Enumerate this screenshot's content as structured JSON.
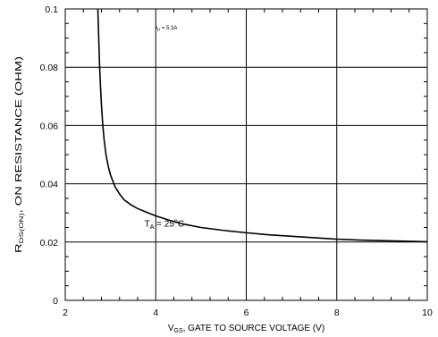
{
  "chart_data": {
    "type": "line",
    "title": "",
    "xlabel": {
      "main": "V",
      "sub": "GS",
      "rest": ", GATE TO SOURCE VOLTAGE (V)"
    },
    "ylabel": {
      "main": "R",
      "sub": "DS(ON)",
      "rest": ", ON RESISTANCE (OHM)"
    },
    "xlim": [
      2,
      10
    ],
    "ylim": [
      0,
      0.1
    ],
    "x_ticks": [
      2,
      4,
      6,
      8,
      10
    ],
    "x_tick_labels": [
      "2",
      "4",
      "6",
      "8",
      "10"
    ],
    "y_ticks": [
      0,
      0.02,
      0.04,
      0.06,
      0.08,
      0.1
    ],
    "y_tick_labels": [
      "0",
      "0.02",
      "0.04",
      "0.06",
      "0.08",
      "0.1"
    ],
    "grid": true,
    "annotations": {
      "condition": {
        "main": "I",
        "sub": "D",
        "rest": " = 5.3A",
        "x": 4.0,
        "y": 0.093
      },
      "temperature": {
        "main": "T",
        "sub": "A",
        "rest": " = 25",
        "sup": "o",
        "unit": "C",
        "x": 3.75,
        "y": 0.0253
      }
    },
    "series": [
      {
        "x": [
          2.72,
          2.73,
          2.74,
          2.75,
          2.76,
          2.78,
          2.8,
          2.83,
          2.86,
          2.9,
          2.95,
          3.0,
          3.1,
          3.2,
          3.3,
          3.45,
          3.6,
          3.8,
          4.0,
          4.3,
          4.6,
          5.0,
          5.5,
          6.0,
          6.5,
          7.0,
          7.5,
          8.0,
          8.5,
          9.0,
          9.5,
          10.0
        ],
        "y": [
          0.1,
          0.095,
          0.09,
          0.085,
          0.08,
          0.073,
          0.067,
          0.06,
          0.055,
          0.05,
          0.046,
          0.043,
          0.039,
          0.0365,
          0.0345,
          0.0328,
          0.0315,
          0.0302,
          0.029,
          0.0275,
          0.0262,
          0.025,
          0.024,
          0.0232,
          0.0225,
          0.022,
          0.0215,
          0.021,
          0.0207,
          0.0205,
          0.0203,
          0.0201
        ]
      }
    ]
  }
}
